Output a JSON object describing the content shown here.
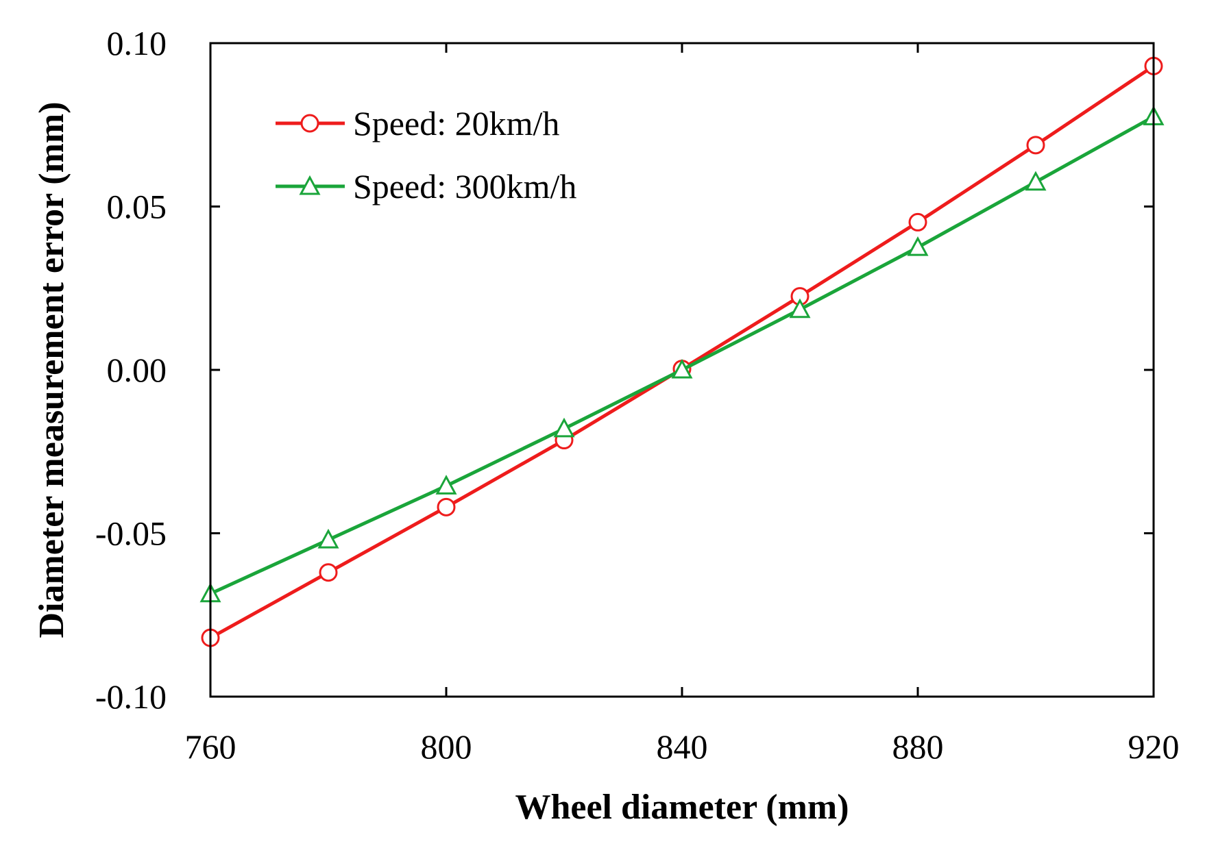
{
  "chart_data": {
    "type": "line",
    "title": "",
    "xlabel": "Wheel diameter (mm)",
    "ylabel": "Diameter measurement error (mm)",
    "xlim": [
      760,
      920
    ],
    "ylim": [
      -0.1,
      0.1
    ],
    "x_ticks": [
      760,
      800,
      840,
      880,
      920
    ],
    "x_tick_labels": [
      "760",
      "800",
      "840",
      "880",
      "920"
    ],
    "y_ticks": [
      -0.1,
      -0.05,
      0.0,
      0.05,
      0.1
    ],
    "y_tick_labels": [
      "-0.10",
      "-0.05",
      "0.00",
      "0.05",
      "0.10"
    ],
    "legend_position": "top-left",
    "x": [
      760,
      780,
      800,
      820,
      840,
      860,
      880,
      900,
      920
    ],
    "series": [
      {
        "name": "Speed: 20km/h",
        "color": "#ee1c1c",
        "marker": "circle",
        "values": [
          -0.082,
          -0.062,
          -0.042,
          -0.0215,
          0.0003,
          0.0225,
          0.0452,
          0.0688,
          0.093
        ]
      },
      {
        "name": "Speed: 300km/h",
        "color": "#1aa53a",
        "marker": "triangle",
        "values": [
          -0.0685,
          -0.052,
          -0.0355,
          -0.018,
          0.0,
          0.0185,
          0.0375,
          0.0575,
          0.0775
        ]
      }
    ]
  }
}
